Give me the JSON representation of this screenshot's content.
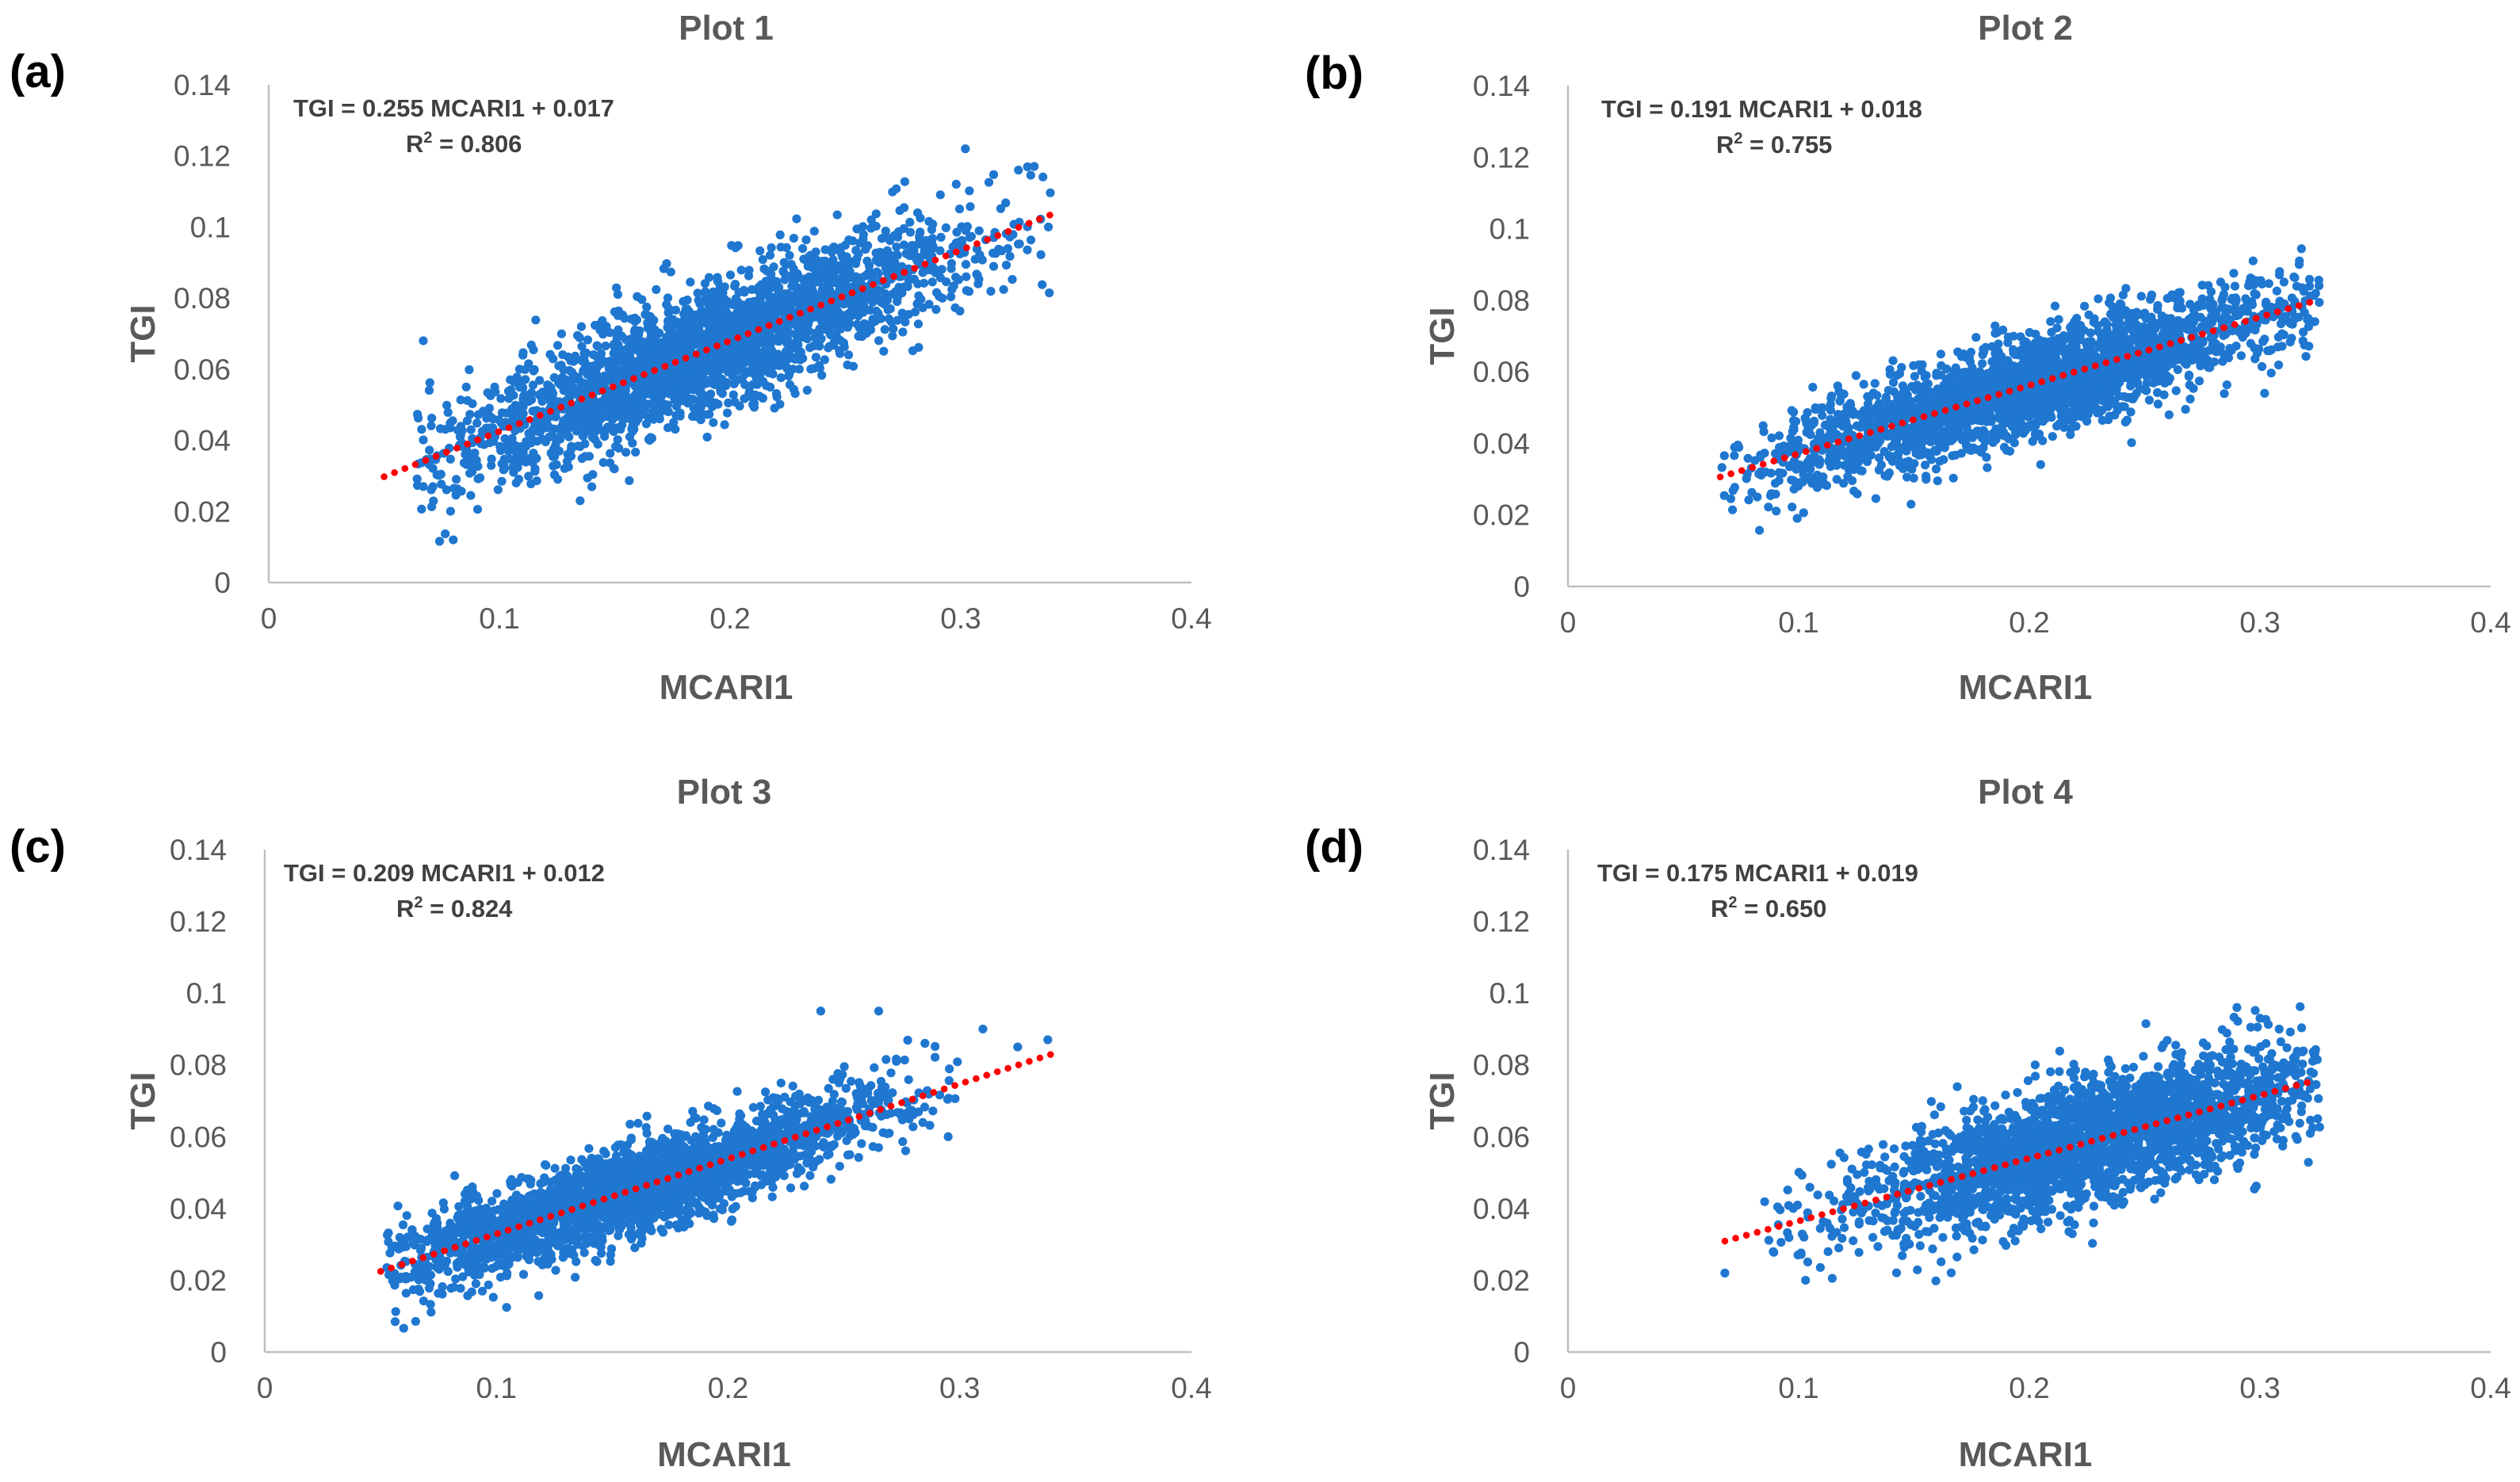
{
  "figure": {
    "background": "#ffffff",
    "point_color": "#1f77d0",
    "trendline_color": "#ff0000"
  },
  "chart_data": [
    {
      "type": "scatter",
      "panel": "(a)",
      "title": "Plot 1",
      "xlabel": "MCARI1",
      "ylabel": "TGI",
      "xlim": [
        0,
        0.4
      ],
      "ylim": [
        0,
        0.14
      ],
      "xticks": [
        "0",
        "0.1",
        "0.2",
        "0.3",
        "0.4"
      ],
      "yticks": [
        "0",
        "0.02",
        "0.04",
        "0.06",
        "0.08",
        "0.1",
        "0.12",
        "0.14"
      ],
      "equation": "TGI = 0.255 MCARI1 + 0.017",
      "r2_label": "R",
      "r2_sup": "2",
      "r2_value": " = 0.806",
      "trend": {
        "slope": 0.255,
        "intercept": 0.017,
        "x_range": [
          0.05,
          0.342
        ]
      },
      "cloud": {
        "x_center": 0.19,
        "x_spread": 0.058,
        "x_range": [
          0.063,
          0.342
        ],
        "noise": 0.0088
      },
      "outliers": [
        [
          0.067,
          0.068
        ],
        [
          0.08,
          0.012
        ],
        [
          0.135,
          0.023
        ],
        [
          0.302,
          0.122
        ],
        [
          0.325,
          0.116
        ],
        [
          0.338,
          0.1
        ]
      ],
      "grid": false
    },
    {
      "type": "scatter",
      "panel": "(b)",
      "title": "Plot 2",
      "xlabel": "MCARI1",
      "ylabel": "TGI",
      "xlim": [
        0,
        0.4
      ],
      "ylim": [
        0,
        0.14
      ],
      "xticks": [
        "0",
        "0.1",
        "0.2",
        "0.3",
        "0.4"
      ],
      "yticks": [
        "0",
        "0.02",
        "0.04",
        "0.06",
        "0.08",
        "0.1",
        "0.12",
        "0.14"
      ],
      "equation": "TGI = 0.191 MCARI1 + 0.018",
      "r2_label": "R",
      "r2_sup": "2",
      "r2_value": " = 0.755",
      "trend": {
        "slope": 0.191,
        "intercept": 0.018,
        "x_range": [
          0.066,
          0.326
        ]
      },
      "cloud": {
        "x_center": 0.2,
        "x_spread": 0.055,
        "x_range": [
          0.066,
          0.326
        ],
        "noise": 0.0068
      },
      "outliers": [
        [
          0.297,
          0.091
        ],
        [
          0.317,
          0.09
        ],
        [
          0.323,
          0.074
        ],
        [
          0.302,
          0.054
        ]
      ],
      "grid": false
    },
    {
      "type": "scatter",
      "panel": "(c)",
      "title": "Plot 3",
      "xlabel": "MCARI1",
      "ylabel": "TGI",
      "xlim": [
        0,
        0.4
      ],
      "ylim": [
        0,
        0.14
      ],
      "xticks": [
        "0",
        "0.1",
        "0.2",
        "0.3",
        "0.4"
      ],
      "yticks": [
        "0",
        "0.02",
        "0.04",
        "0.06",
        "0.08",
        "0.1",
        "0.12",
        "0.14"
      ],
      "equation": "TGI = 0.209 MCARI1 + 0.012",
      "r2_label": "R",
      "r2_sup": "2",
      "r2_value": " = 0.824",
      "trend": {
        "slope": 0.209,
        "intercept": 0.012,
        "x_range": [
          0.05,
          0.34
        ]
      },
      "cloud": {
        "x_center": 0.16,
        "x_spread": 0.052,
        "x_range": [
          0.052,
          0.3
        ],
        "noise": 0.0062
      },
      "outliers": [
        [
          0.24,
          0.095
        ],
        [
          0.265,
          0.095
        ],
        [
          0.31,
          0.09
        ],
        [
          0.325,
          0.085
        ],
        [
          0.338,
          0.087
        ],
        [
          0.295,
          0.06
        ]
      ],
      "grid": false
    },
    {
      "type": "scatter",
      "panel": "(d)",
      "title": "Plot 4",
      "xlabel": "MCARI1",
      "ylabel": "TGI",
      "xlim": [
        0,
        0.4
      ],
      "ylim": [
        0,
        0.14
      ],
      "xticks": [
        "0",
        "0.1",
        "0.2",
        "0.3",
        "0.4"
      ],
      "yticks": [
        "0",
        "0.02",
        "0.04",
        "0.06",
        "0.08",
        "0.1",
        "0.12",
        "0.14"
      ],
      "equation": "TGI = 0.175 MCARI1 + 0.019",
      "r2_label": "R",
      "r2_sup": "2",
      "r2_value": " = 0.650",
      "trend": {
        "slope": 0.175,
        "intercept": 0.019,
        "x_range": [
          0.068,
          0.324
        ]
      },
      "cloud": {
        "x_center": 0.23,
        "x_spread": 0.05,
        "x_range": [
          0.085,
          0.326
        ],
        "noise": 0.0085
      },
      "outliers": [
        [
          0.068,
          0.022
        ],
        [
          0.29,
          0.096
        ],
        [
          0.3,
          0.093
        ],
        [
          0.325,
          0.065
        ],
        [
          0.103,
          0.02
        ]
      ],
      "grid": false
    }
  ]
}
